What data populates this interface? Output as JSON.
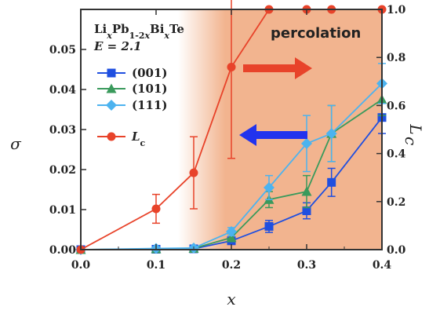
{
  "chart_data": {
    "type": "line",
    "xlabel": "x",
    "ylabel_left": "σ",
    "ylabel_right": "L",
    "ylabel_right_sub": "c",
    "xlim": [
      0,
      0.4
    ],
    "ylim_left": [
      0,
      0.06
    ],
    "ylim_right": [
      0,
      1.0
    ],
    "x_ticks": [
      "0.0",
      "0.1",
      "0.2",
      "0.3",
      "0.4"
    ],
    "y_left_ticks": [
      "0.00",
      "0.01",
      "0.02",
      "0.03",
      "0.04",
      "0.05"
    ],
    "y_right_ticks": [
      "0.0",
      "0.2",
      "0.4",
      "0.6",
      "0.8",
      "1.0"
    ],
    "legend_title_parts": [
      {
        "t": "Li",
        "s": "normal"
      },
      {
        "t": "x",
        "s": "sub-italic"
      },
      {
        "t": "Pb",
        "s": "normal"
      },
      {
        "t": "1-2",
        "s": "sub"
      },
      {
        "t": "x",
        "s": "sub-italic"
      },
      {
        "t": "Bi",
        "s": "normal"
      },
      {
        "t": "x",
        "s": "sub-italic"
      },
      {
        "t": "Te",
        "s": "normal"
      }
    ],
    "legend_energy": "E = 2.1",
    "annotation": "percolation",
    "shaded_region": {
      "x_from": 0.15,
      "x_to": 0.4,
      "color": "#f2b48f"
    },
    "legend_position": "top-left",
    "series": [
      {
        "name": "(001)",
        "axis": "left",
        "color": "#1f4fe0",
        "marker": "square",
        "x": [
          0,
          0.1,
          0.15,
          0.2,
          0.25,
          0.3,
          0.333,
          0.4
        ],
        "y": [
          0,
          0.0001,
          0.0002,
          0.0022,
          0.0058,
          0.0097,
          0.0168,
          0.033
        ],
        "err": [
          0,
          0,
          0,
          0.0008,
          0.0015,
          0.002,
          0.0035,
          0.004
        ]
      },
      {
        "name": "(101)",
        "axis": "left",
        "color": "#3a9a5c",
        "marker": "triangle",
        "x": [
          0,
          0.1,
          0.15,
          0.2,
          0.25,
          0.3,
          0.333,
          0.4
        ],
        "y": [
          0,
          0.0002,
          0.0003,
          0.003,
          0.0125,
          0.0145,
          0.029,
          0.0375
        ],
        "err": [
          0,
          0,
          0,
          0.001,
          0.002,
          0.004,
          0.007,
          0.004
        ]
      },
      {
        "name": "(111)",
        "axis": "left",
        "color": "#4cb3ef",
        "marker": "diamond",
        "x": [
          0,
          0.1,
          0.15,
          0.2,
          0.25,
          0.3,
          0.333,
          0.4
        ],
        "y": [
          0,
          0.0003,
          0.0004,
          0.0045,
          0.0155,
          0.0265,
          0.029,
          0.0415
        ],
        "err": [
          0,
          0,
          0,
          0.001,
          0.003,
          0.007,
          0.007,
          0.005
        ]
      },
      {
        "name": "L",
        "name_sub": "c",
        "axis": "right",
        "color": "#e8432a",
        "marker": "circle",
        "x": [
          0,
          0.1,
          0.15,
          0.2,
          0.25,
          0.3,
          0.333,
          0.4
        ],
        "y": [
          0,
          0.17,
          0.32,
          0.76,
          1.0,
          1.0,
          1.0,
          1.0
        ],
        "err": [
          0,
          0.06,
          0.15,
          0.38,
          0,
          0,
          0,
          0
        ]
      }
    ],
    "arrows": [
      {
        "direction": "right",
        "color": "#e8432a"
      },
      {
        "direction": "left",
        "color": "#2233ee"
      }
    ]
  }
}
